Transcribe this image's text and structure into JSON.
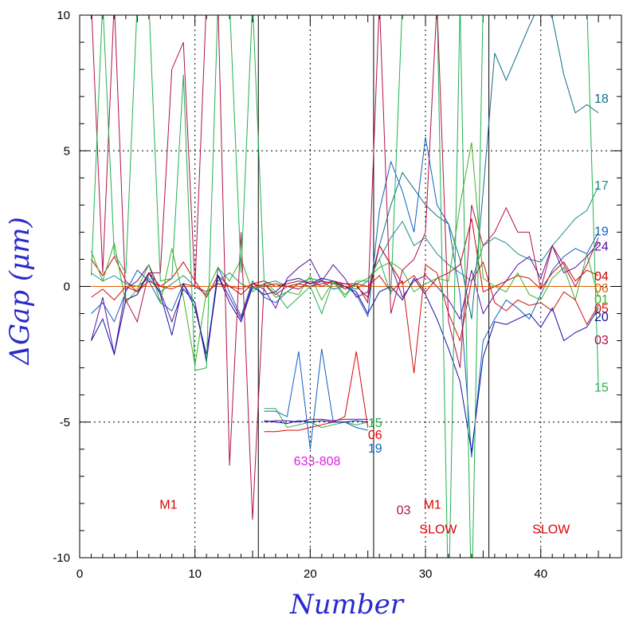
{
  "chart_data": {
    "type": "line",
    "xlabel": "Number",
    "ylabel": "ΔGap (μm)",
    "xlim": [
      0,
      47
    ],
    "ylim": [
      -10,
      10
    ],
    "x_ticks": [
      0,
      10,
      20,
      30,
      40
    ],
    "x_tick_labels": [
      "0",
      "10",
      "20",
      "30",
      "40"
    ],
    "y_ticks": [
      -10,
      -5,
      0,
      5,
      10
    ],
    "y_tick_labels": [
      "-10",
      "-5",
      "0",
      "5",
      "10"
    ],
    "grid": "dotted at major ticks",
    "section_dividers_x": [
      15.5,
      25.5,
      35.5
    ],
    "annotations": [
      {
        "text": "M1",
        "x": 7.7,
        "y": -8.2,
        "color": "#e00000"
      },
      {
        "text": "633-808",
        "x": 20.6,
        "y": -6.6,
        "color": "#e020e0"
      },
      {
        "text": "03",
        "x": 28.1,
        "y": -8.4,
        "color": "#b0104a"
      },
      {
        "text": "M1",
        "x": 30.6,
        "y": -8.2,
        "color": "#e00000"
      },
      {
        "text": "SLOW",
        "x": 31.1,
        "y": -9.1,
        "color": "#e00000"
      },
      {
        "text": "SLOW",
        "x": 40.9,
        "y": -9.1,
        "color": "#e00000"
      }
    ],
    "inset_labels": [
      {
        "text": "15",
        "x": 25.7,
        "y": -5.0,
        "color": "#20b040"
      },
      {
        "text": "06",
        "x": 25.7,
        "y": -5.45,
        "color": "#e00000"
      },
      {
        "text": "19",
        "x": 25.7,
        "y": -5.95,
        "color": "#1060c0"
      }
    ],
    "series": [
      {
        "name": "18",
        "color": "#106c8a",
        "label_y": 6.95,
        "x": [
          25,
          26,
          27,
          28,
          29,
          30,
          31,
          32,
          33,
          34,
          35,
          36,
          37,
          38,
          39,
          40,
          41,
          42,
          43,
          44,
          45
        ],
        "y": [
          -0.5,
          1.5,
          3.0,
          4.2,
          3.6,
          3.0,
          2.6,
          2.3,
          1.0,
          -1.2,
          3.5,
          8.6,
          7.6,
          8.6,
          9.6,
          10.5,
          9.9,
          7.8,
          6.4,
          6.7,
          6.4
        ]
      },
      {
        "name": "17",
        "color": "#1a8c8c",
        "label_y": 3.75,
        "x": [
          1,
          2,
          3,
          4,
          5,
          6,
          7,
          8,
          9,
          10,
          11,
          12,
          13,
          14,
          15,
          16,
          17,
          18,
          19,
          20,
          21,
          22,
          23,
          24,
          25,
          26,
          27,
          28,
          29,
          30,
          31,
          32,
          33,
          34,
          35,
          36,
          37,
          38,
          39,
          40,
          41,
          42,
          43,
          44,
          45
        ],
        "y": [
          0.5,
          0.2,
          0.4,
          0.1,
          0.0,
          0.3,
          -0.2,
          0.1,
          0.4,
          0.0,
          -0.3,
          0.2,
          0.5,
          0.1,
          -0.1,
          0.1,
          0.2,
          0.0,
          0.1,
          0.3,
          0.2,
          0.1,
          0.0,
          -0.1,
          0.2,
          1.0,
          1.8,
          2.4,
          1.5,
          1.8,
          1.2,
          0.8,
          0.5,
          0.2,
          1.5,
          1.8,
          1.6,
          1.2,
          1.0,
          0.9,
          1.5,
          2.0,
          2.5,
          2.8,
          3.7
        ]
      },
      {
        "name": "19",
        "color": "#1060c0",
        "label_y": 2.05,
        "x": [
          1,
          2,
          3,
          4,
          5,
          6,
          7,
          8,
          9,
          10,
          11,
          12,
          13,
          14,
          15,
          16,
          17,
          18,
          19,
          20,
          21,
          22,
          23,
          24,
          25,
          26,
          27,
          28,
          29,
          30,
          31,
          32,
          33,
          34,
          35,
          36,
          37,
          38,
          39,
          40,
          41,
          42,
          43,
          44,
          45
        ],
        "y": [
          -1.0,
          -0.6,
          -1.3,
          -0.2,
          0.6,
          0.2,
          -0.6,
          -0.9,
          0.1,
          -0.6,
          -2.8,
          0.7,
          -0.2,
          -1.1,
          0.2,
          -0.4,
          -0.6,
          -0.2,
          0.1,
          0.0,
          0.2,
          -0.1,
          0.0,
          -0.3,
          -1.1,
          2.8,
          4.6,
          3.5,
          2.0,
          5.5,
          3.0,
          2.3,
          -0.3,
          -6.3,
          -2.0,
          -1.2,
          -0.5,
          -0.8,
          -1.2,
          -0.3,
          0.6,
          1.1,
          1.4,
          1.2,
          2.0
        ]
      },
      {
        "name": "24",
        "color": "#5a0fa0",
        "label_y": 1.5,
        "x": [
          1,
          2,
          3,
          4,
          5,
          6,
          7,
          8,
          9,
          10,
          11,
          12,
          13,
          14,
          15,
          16,
          17,
          18,
          19,
          20,
          21,
          22,
          23,
          24,
          25,
          26,
          27,
          28,
          29,
          30,
          31,
          32,
          33,
          34,
          35,
          36,
          37,
          38,
          39,
          40,
          41,
          42,
          43,
          44,
          45
        ],
        "y": [
          -2.0,
          -0.4,
          -2.5,
          -0.1,
          0.2,
          0.8,
          -0.2,
          -1.3,
          -0.1,
          -0.6,
          -2.7,
          0.4,
          -0.4,
          -1.2,
          0.1,
          -0.1,
          -0.8,
          0.3,
          0.7,
          1.0,
          0.2,
          0.8,
          0.3,
          -0.4,
          -0.2,
          1.5,
          0.8,
          -0.4,
          0.2,
          0.4,
          0.0,
          -0.5,
          -1.2,
          0.6,
          -1.0,
          -0.3,
          0.2,
          0.8,
          1.1,
          0.3,
          1.5,
          0.5,
          0.7,
          1.1,
          1.6
        ]
      },
      {
        "name": "04",
        "color": "#cc0000",
        "label_y": 0.4,
        "x": [
          1,
          2,
          3,
          4,
          5,
          6,
          7,
          8,
          9,
          10,
          11,
          12,
          13,
          14,
          15,
          16,
          17,
          18,
          19,
          20,
          21,
          22,
          23,
          24,
          25,
          26,
          27,
          28,
          29,
          30,
          31,
          32,
          33,
          34,
          35,
          36,
          37,
          38,
          39,
          40,
          41,
          42,
          43,
          44,
          45
        ],
        "y": [
          1.0,
          0.4,
          1.1,
          0.2,
          -0.2,
          0.5,
          0.0,
          0.3,
          0.9,
          0.2,
          -0.4,
          0.4,
          0.0,
          -0.3,
          0.1,
          0.2,
          0.0,
          0.1,
          0.2,
          0.1,
          0.2,
          0.1,
          0.1,
          0.0,
          -0.4,
          1.5,
          0.8,
          0.1,
          0.4,
          -0.2,
          0.3,
          0.5,
          0.8,
          2.5,
          -0.2,
          0.0,
          0.2,
          0.4,
          0.3,
          -0.1,
          0.5,
          0.9,
          0.2,
          0.6,
          0.4
        ]
      },
      {
        "name": "06",
        "color": "#e06000",
        "label_y": -0.05,
        "x": [
          1,
          2,
          3,
          4,
          5,
          6,
          7,
          8,
          9,
          10,
          11,
          12,
          13,
          14,
          15,
          16,
          17,
          18,
          19,
          20,
          21,
          22,
          23,
          24,
          25,
          26,
          27,
          28,
          29,
          30,
          31,
          32,
          33,
          34,
          35,
          36,
          37,
          38,
          39,
          40,
          41,
          42,
          43,
          44,
          45
        ],
        "y": [
          0.0,
          0.0,
          0.0,
          0.0,
          0.0,
          0.0,
          0.0,
          0.0,
          0.0,
          0.0,
          0.0,
          0.0,
          0.0,
          0.0,
          0.0,
          0.0,
          0.0,
          0.0,
          0.0,
          0.0,
          0.0,
          0.0,
          0.0,
          0.0,
          0.0,
          0.0,
          0.0,
          0.0,
          0.0,
          0.0,
          0.0,
          0.0,
          0.0,
          0.0,
          0.0,
          0.0,
          0.0,
          0.0,
          0.0,
          0.0,
          0.0,
          0.0,
          0.0,
          0.0,
          0.0
        ]
      },
      {
        "name": "01",
        "color": "#40b020",
        "label_y": -0.45,
        "x": [
          1,
          2,
          3,
          4,
          5,
          6,
          7,
          8,
          9,
          10,
          11,
          12,
          13,
          14,
          15,
          16,
          17,
          18,
          19,
          20,
          21,
          22,
          23,
          24,
          25,
          26,
          27,
          28,
          29,
          30,
          31,
          32,
          33,
          34,
          35,
          36,
          37,
          38,
          39,
          40,
          41,
          42,
          43,
          44,
          45
        ],
        "y": [
          1.3,
          0.2,
          1.6,
          -0.6,
          -0.1,
          0.8,
          -0.6,
          1.4,
          -0.4,
          -2.9,
          -0.2,
          0.7,
          0.2,
          1.0,
          -0.2,
          0.1,
          -0.4,
          -0.2,
          -0.3,
          0.4,
          -0.5,
          0.2,
          -0.3,
          0.1,
          0.3,
          0.7,
          0.9,
          0.6,
          -0.2,
          0.1,
          0.3,
          0.2,
          3.0,
          5.3,
          0.3,
          0.0,
          -0.2,
          0.5,
          -0.3,
          -0.5,
          0.3,
          0.7,
          -0.5,
          1.2,
          -0.4
        ]
      },
      {
        "name": "05",
        "color": "#d01010",
        "label_y": -0.8,
        "x": [
          1,
          2,
          3,
          4,
          5,
          6,
          7,
          8,
          9,
          10,
          11,
          12,
          13,
          14,
          15,
          16,
          17,
          18,
          19,
          20,
          21,
          22,
          23,
          24,
          25,
          26,
          27,
          28,
          29,
          30,
          31,
          32,
          33,
          34,
          35,
          36,
          37,
          38,
          39,
          40,
          41,
          42,
          43,
          44,
          45
        ],
        "y": [
          -0.4,
          -0.1,
          -0.5,
          0.0,
          -0.2,
          0.2,
          0.0,
          -0.1,
          0.1,
          0.0,
          -0.2,
          0.1,
          0.0,
          -0.1,
          0.1,
          0.0,
          0.1,
          0.0,
          0.1,
          0.0,
          0.1,
          0.2,
          0.1,
          0.1,
          0.0,
          0.4,
          -0.2,
          0.2,
          -3.2,
          0.8,
          0.5,
          -1.0,
          -2.0,
          0.2,
          0.9,
          -0.6,
          -0.9,
          -0.5,
          -0.7,
          -0.6,
          -0.9,
          -0.2,
          -0.5,
          -1.4,
          -0.7
        ]
      },
      {
        "name": "20",
        "color": "#1010a0",
        "label_y": -1.1,
        "x": [
          1,
          2,
          3,
          4,
          5,
          6,
          7,
          8,
          9,
          10,
          11,
          12,
          13,
          14,
          15,
          16,
          17,
          18,
          19,
          20,
          21,
          22,
          23,
          24,
          25,
          26,
          27,
          28,
          29,
          30,
          31,
          32,
          33,
          34,
          35,
          36,
          37,
          38,
          39,
          40,
          41,
          42,
          43,
          44,
          45
        ],
        "y": [
          -2.0,
          -1.2,
          -2.5,
          -0.5,
          -0.3,
          0.5,
          -0.3,
          -1.8,
          0.1,
          -0.8,
          -2.5,
          0.4,
          -0.6,
          -1.3,
          0.0,
          -0.3,
          -0.2,
          0.2,
          0.3,
          0.1,
          0.3,
          0.2,
          0.0,
          -0.2,
          -1.0,
          -0.2,
          0.0,
          -0.5,
          0.3,
          -0.3,
          -1.2,
          -2.3,
          -3.5,
          -6.1,
          -2.6,
          -1.3,
          -1.4,
          -1.2,
          -1.0,
          -1.5,
          -0.8,
          -2.0,
          -1.7,
          -1.5,
          -0.8
        ]
      },
      {
        "name": "03",
        "color": "#b0104a",
        "label_y": -1.95,
        "x": [
          1,
          2,
          3,
          4,
          5,
          6,
          7,
          8,
          9,
          10,
          11,
          12,
          13,
          14,
          15,
          16,
          17,
          18,
          19,
          20,
          21,
          22,
          23,
          24,
          25,
          26,
          27,
          28,
          29,
          30,
          31,
          32,
          33,
          34,
          35,
          36,
          37,
          38,
          39,
          40,
          41,
          42,
          43,
          44,
          45
        ],
        "y": [
          10.5,
          0.5,
          10.5,
          -0.5,
          -1.3,
          0.5,
          0.5,
          8.0,
          9.0,
          0.0,
          10.5,
          10.5,
          -6.6,
          2.0,
          -8.6,
          0.1,
          -0.3,
          0.0,
          -0.1,
          0.2,
          0.0,
          0.2,
          -0.1,
          0.1,
          -0.6,
          10.5,
          -1.0,
          0.6,
          1.0,
          2.0,
          10.5,
          -1.3,
          -3.0,
          3.0,
          1.5,
          2.0,
          2.9,
          2.0,
          2.0,
          -0.1,
          1.5,
          0.8,
          0.0,
          0.8,
          1.8
        ]
      },
      {
        "name": "15",
        "color": "#20b050",
        "label_y": -3.7,
        "x": [
          1,
          2,
          3,
          4,
          5,
          6,
          7,
          8,
          9,
          10,
          11,
          12,
          13,
          14,
          15,
          16,
          17,
          18,
          19,
          20,
          21,
          22,
          23,
          24,
          25,
          26,
          27,
          28,
          29,
          30,
          31,
          32,
          33,
          34,
          35,
          36,
          37,
          38,
          39,
          40,
          41,
          42,
          43,
          44,
          45
        ],
        "y": [
          0.4,
          10.5,
          1.2,
          0.5,
          10.5,
          10.5,
          0.2,
          0.3,
          7.8,
          -3.1,
          -3.0,
          10.5,
          10.5,
          0.5,
          10.5,
          0.2,
          -0.2,
          -0.8,
          -0.4,
          0.0,
          -1.0,
          0.2,
          -0.4,
          0.2,
          0.2,
          1.0,
          -0.3,
          10.5,
          10.5,
          10.5,
          10.5,
          -12.0,
          10.5,
          -12.0,
          10.5,
          10.5,
          10.5,
          10.5,
          10.5,
          10.5,
          10.5,
          10.5,
          10.5,
          10.5,
          -3.7
        ]
      }
    ],
    "inset_series": [
      {
        "name": "15",
        "color": "#20b050",
        "x": [
          16,
          17,
          18,
          19,
          20,
          21,
          22,
          23,
          24,
          25
        ],
        "y": [
          -4.5,
          -4.5,
          -5.2,
          -5.1,
          -5.0,
          -5.2,
          -5.1,
          -5.0,
          -5.1,
          -5.0
        ]
      },
      {
        "name": "06",
        "color": "#e00000",
        "x": [
          16,
          17,
          18,
          19,
          20,
          21,
          22,
          23,
          24,
          25
        ],
        "y": [
          -5.35,
          -5.35,
          -5.3,
          -5.3,
          -5.2,
          -5.1,
          -5.0,
          -4.8,
          -2.4,
          -5.2
        ]
      },
      {
        "name": "19",
        "color": "#1060c0",
        "x": [
          16,
          17,
          18,
          19,
          20,
          21,
          22,
          23,
          24,
          25
        ],
        "y": [
          -4.6,
          -4.6,
          -4.8,
          -2.4,
          -6.0,
          -2.3,
          -5.0,
          -5.0,
          -5.2,
          -5.3
        ]
      },
      {
        "name": "24",
        "color": "#5a0fa0",
        "x": [
          16,
          17,
          18,
          19,
          20,
          21,
          22,
          23,
          24,
          25
        ],
        "y": [
          -5.0,
          -4.95,
          -4.95,
          -5.0,
          -4.9,
          -4.9,
          -4.95,
          -4.9,
          -4.9,
          -4.9
        ]
      },
      {
        "name": "20",
        "color": "#1010a0",
        "x": [
          16,
          17,
          18,
          19,
          20,
          21,
          22,
          23,
          24,
          25
        ],
        "y": [
          -4.95,
          -5.0,
          -5.05,
          -4.95,
          -5.0,
          -4.95,
          -5.0,
          -5.0,
          -4.95,
          -5.0
        ]
      }
    ]
  }
}
